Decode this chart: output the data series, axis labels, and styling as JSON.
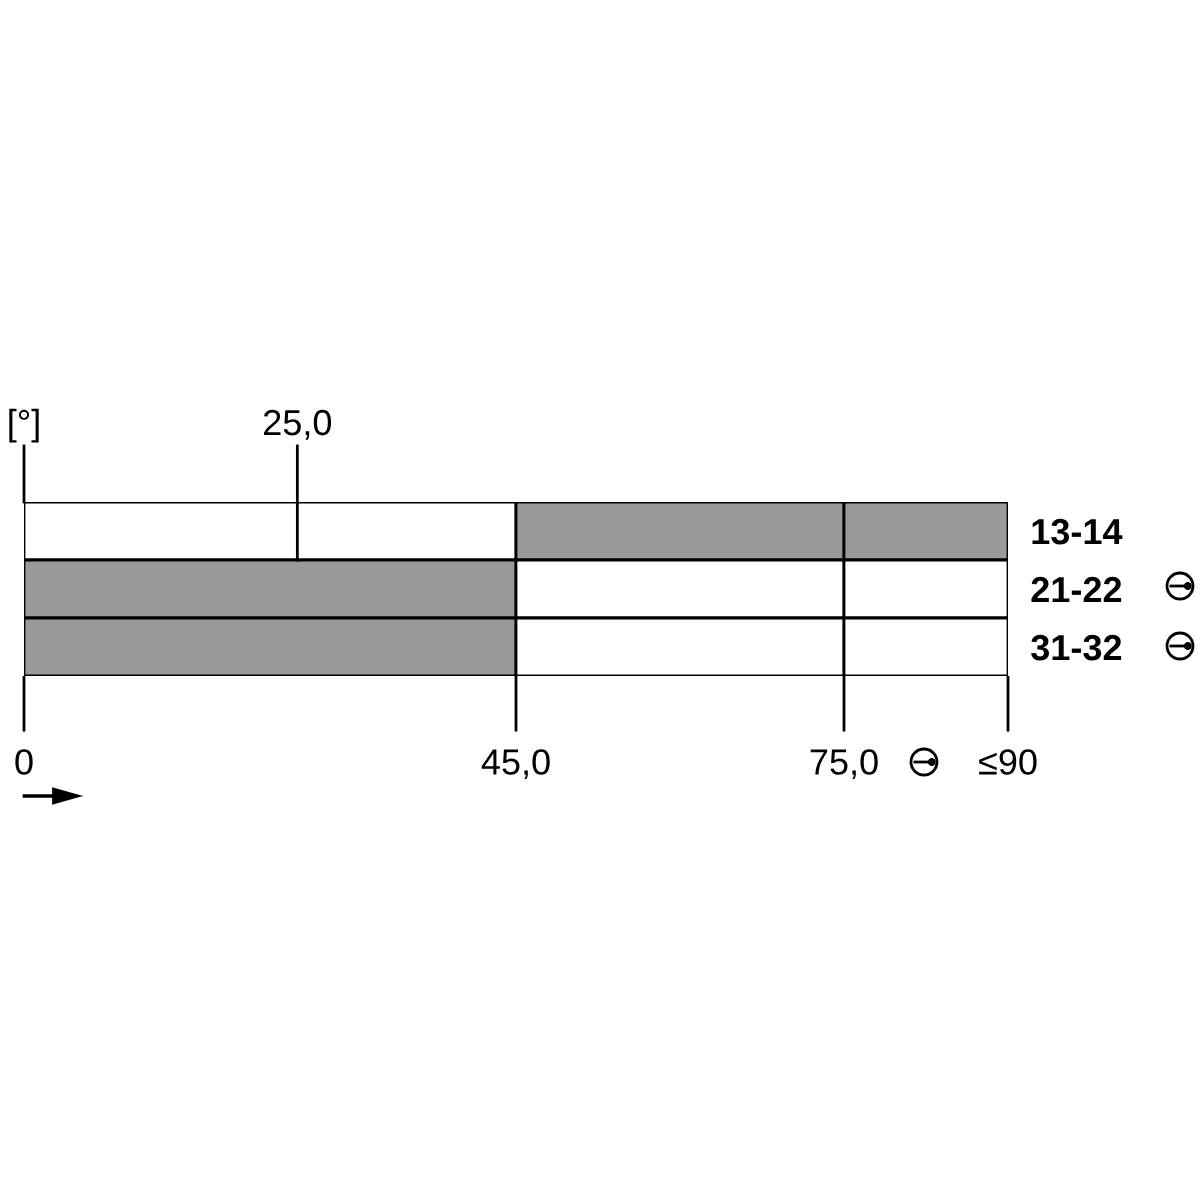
{
  "chart_data": {
    "type": "bar",
    "orientation": "horizontal",
    "stacked": true,
    "categories": [
      "13-14",
      "21-22",
      "31-32"
    ],
    "series": [
      {
        "colors": [
          "#ffffff",
          "#999999",
          "#999999"
        ],
        "values": [
          45,
          45,
          45
        ]
      },
      {
        "colors": [
          "#999999",
          "#ffffff",
          "#ffffff"
        ],
        "values": [
          30,
          30,
          30
        ]
      },
      {
        "colors": [
          "#999999",
          "#ffffff",
          "#ffffff"
        ],
        "values": [
          15,
          15,
          15
        ]
      }
    ],
    "xlim": [
      0,
      90
    ],
    "xticks": [
      0,
      {
        "value": 45,
        "label": "45,0"
      },
      {
        "value": 75,
        "label": "75,0"
      },
      {
        "value": 90,
        "label": "≤90"
      }
    ],
    "xlabel": "[°]",
    "ref_lines": [
      {
        "axis": "x",
        "value": 25,
        "label": "25,0"
      }
    ],
    "grid": false,
    "legend": false
  }
}
